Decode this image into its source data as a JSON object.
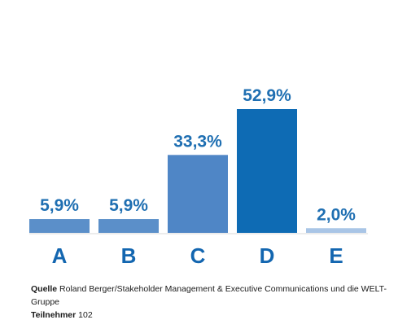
{
  "chart_data": {
    "type": "bar",
    "categories": [
      "A",
      "B",
      "C",
      "D",
      "E"
    ],
    "values": [
      5.9,
      5.9,
      33.3,
      52.9,
      2.0
    ],
    "value_labels": [
      "5,9%",
      "5,9%",
      "33,3%",
      "52,9%",
      "2,0%"
    ],
    "bar_colors": [
      "#5b8fc9",
      "#5b8fc9",
      "#4f86c6",
      "#0e6bb4",
      "#a9c5e6"
    ],
    "title": "",
    "xlabel": "",
    "ylabel": "",
    "ylim": [
      0,
      60
    ],
    "grid": false,
    "legend": "none"
  },
  "footer": {
    "source_label": "Quelle",
    "source_text": "Roland Berger/Stakeholder Management & Executive Communications  und die WELT-Gruppe",
    "participants_label": "Teilnehmer",
    "participants_value": "102"
  }
}
